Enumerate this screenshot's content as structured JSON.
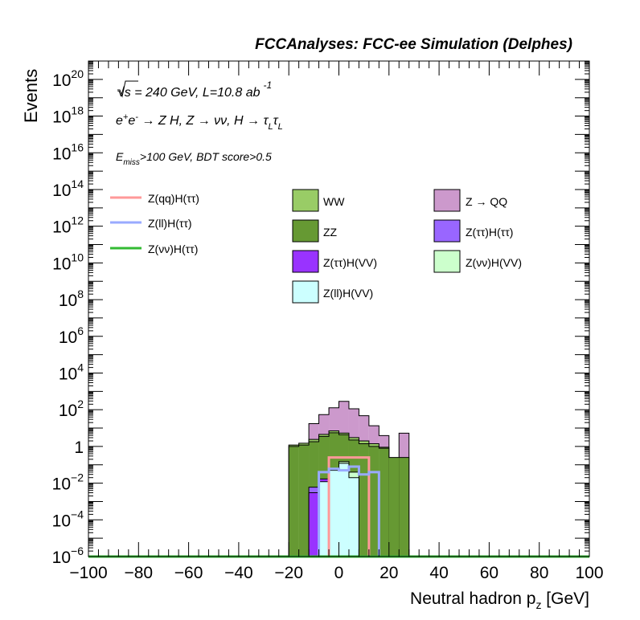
{
  "chart_data": {
    "type": "bar",
    "title": "FCCAnalyses: FCC-ee Simulation (Delphes)",
    "annotations": {
      "line1": "√s = 240 GeV, L=10.8 ab",
      "line1_sup": "-1",
      "line2_parts": [
        "e",
        "+",
        "e",
        "-",
        " → Z H, Z → νν, H → τ",
        "L",
        "τ",
        "L"
      ],
      "line3_parts": [
        "E",
        "miss",
        ">100 GeV, BDT score>0.5"
      ]
    },
    "xlabel": "Neutral hadron p",
    "xlabel_sub": "z",
    "xlabel_unit": " [GeV]",
    "ylabel": "Events",
    "xlim": [
      -100,
      100
    ],
    "ylog": true,
    "ylim": [
      1e-06,
      1e+21
    ],
    "xticks": [
      -100,
      -80,
      -60,
      -40,
      -20,
      0,
      20,
      40,
      60,
      80,
      100
    ],
    "xtick_labels": [
      "−100",
      "−80",
      "−60",
      "−40",
      "−20",
      "0",
      "20",
      "40",
      "60",
      "80",
      "100"
    ],
    "yticks": [
      {
        "base": "10",
        "exp": "−6",
        "value": 1e-06
      },
      {
        "base": "10",
        "exp": "−4",
        "value": 0.0001
      },
      {
        "base": "10",
        "exp": "−2",
        "value": 0.01
      },
      {
        "base": "1",
        "exp": "",
        "value": 1
      },
      {
        "base": "10",
        "exp": "2",
        "value": 100.0
      },
      {
        "base": "10",
        "exp": "4",
        "value": 10000.0
      },
      {
        "base": "10",
        "exp": "6",
        "value": 1000000.0
      },
      {
        "base": "10",
        "exp": "8",
        "value": 100000000.0
      },
      {
        "base": "10",
        "exp": "10",
        "value": 10000000000.0
      },
      {
        "base": "10",
        "exp": "12",
        "value": 1000000000000.0
      },
      {
        "base": "10",
        "exp": "14",
        "value": 100000000000000.0
      },
      {
        "base": "10",
        "exp": "16",
        "value": 1e+16
      },
      {
        "base": "10",
        "exp": "18",
        "value": 1e+18
      },
      {
        "base": "10",
        "exp": "20",
        "value": 1e+20
      }
    ],
    "bin_edges": [
      -20,
      -16,
      -12,
      -8,
      -4,
      0,
      4,
      8,
      12,
      16,
      20,
      24,
      28
    ],
    "stack": [
      {
        "name": "Z(ll)H(VV)",
        "color": "#ccffff",
        "values": [
          0,
          0,
          0,
          0.012,
          0.05,
          0.12,
          0.02,
          0,
          0,
          0,
          0,
          0
        ]
      },
      {
        "name": "Z(νν)H(VV)",
        "color": "#ccffcc",
        "values": [
          0,
          0,
          0,
          0,
          0.01,
          0.03,
          0.02,
          0,
          0,
          0,
          0,
          0
        ]
      },
      {
        "name": "Z(ττ)H(VV)",
        "color": "#9933ff",
        "values": [
          0,
          0,
          0.003,
          0.005,
          0,
          0,
          0,
          0,
          0,
          0,
          0,
          0
        ]
      },
      {
        "name": "Z(ττ)H(ττ)",
        "color": "#9966ff",
        "values": [
          0,
          0,
          0.003,
          0,
          0,
          0,
          0,
          0,
          0,
          0,
          0,
          0
        ]
      },
      {
        "name": "ZZ",
        "color": "#669933",
        "values": [
          1.0,
          1.2,
          1.8,
          3.5,
          5.5,
          4.2,
          2.2,
          1.4,
          1.0,
          0.8,
          0.25,
          0.25
        ]
      },
      {
        "name": "WW",
        "color": "#99cc66",
        "values": [
          0.2,
          0.3,
          0.6,
          1.0,
          1.5,
          1.0,
          0.8,
          0.6,
          0.4,
          0.1,
          0,
          0
        ]
      },
      {
        "name": "Z → QQ",
        "color": "#cc99cc",
        "values": [
          0,
          0,
          15,
          50,
          120,
          280,
          110,
          45,
          12,
          3,
          0,
          5
        ]
      }
    ],
    "stack_draw_order": [
      "Z → QQ",
      "WW",
      "ZZ",
      "Z(ττ)H(ττ)",
      "Z(ττ)H(VV)",
      "Z(νν)H(VV)",
      "Z(ll)H(VV)"
    ],
    "stack_legend_order": [
      "WW",
      "Z → QQ",
      "ZZ",
      "Z(ττ)H(ττ)",
      "Z(ττ)H(VV)",
      "Z(νν)H(VV)",
      "Z(ll)H(VV)"
    ],
    "signals": [
      {
        "name": "Z(qq)H(ττ)",
        "color": "#ff9999",
        "edges": [
          -4,
          0,
          4,
          8,
          12
        ],
        "values": [
          0.25,
          0.25,
          0.25,
          0.25
        ]
      },
      {
        "name": "Z(ll)H(ττ)",
        "color": "#99aaff",
        "edges": [
          -8,
          -4,
          0,
          4,
          8,
          12,
          16
        ],
        "values": [
          0.04,
          0.06,
          0.05,
          0.08,
          0.03,
          0.04
        ]
      },
      {
        "name": "Z(νν)H(ττ)",
        "color": "#33bb33",
        "edges": [
          -100,
          100
        ],
        "values": [
          1e-06
        ]
      }
    ]
  }
}
